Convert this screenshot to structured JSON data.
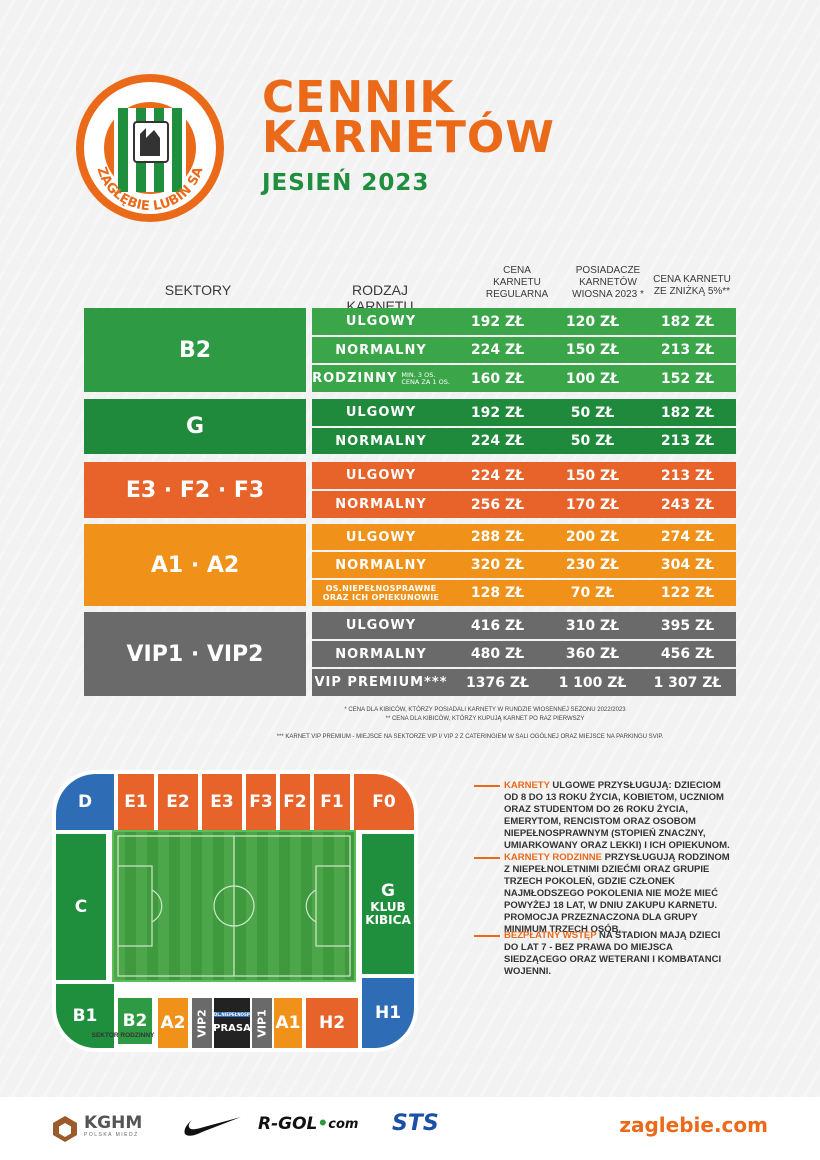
{
  "header": {
    "logo_text": "ZAGŁĘBIE LUBIN SA",
    "title_line1": "CENNIK",
    "title_line2": "KARNETÓW",
    "subtitle": "JESIEŃ 2023"
  },
  "table": {
    "headers": {
      "sector": "SEKTORY",
      "type": "RODZAJ KARNETU",
      "regular": [
        "CENA",
        "KARNETU",
        "REGULARNA"
      ],
      "spring": [
        "POSIADACZE",
        "KARNETÓW",
        "WIOSNA 2023 *"
      ],
      "discount": [
        "CENA KARNETU",
        "ZE ZNIŻKĄ 5%**"
      ]
    },
    "groups": [
      {
        "sector": "B2",
        "color": "#2f9a44",
        "row_color": "#3aa549",
        "rows": [
          {
            "type": "ULGOWY",
            "regular": "192 ZŁ",
            "spring": "120 ZŁ",
            "discount": "182 ZŁ"
          },
          {
            "type": "NORMALNY",
            "regular": "224 ZŁ",
            "spring": "150 ZŁ",
            "discount": "213 ZŁ"
          },
          {
            "type": "RODZINNY",
            "note1": "MIN. 3 OS.",
            "note2": "CENA ZA 1 OS.",
            "regular": "160 ZŁ",
            "spring": "100 ZŁ",
            "discount": "152 ZŁ"
          }
        ]
      },
      {
        "sector": "G",
        "color": "#1f8a3b",
        "row_color": "#1f8a3b",
        "rows": [
          {
            "type": "ULGOWY",
            "regular": "192 ZŁ",
            "spring": "50 ZŁ",
            "discount": "182 ZŁ"
          },
          {
            "type": "NORMALNY",
            "regular": "224 ZŁ",
            "spring": "50 ZŁ",
            "discount": "213 ZŁ"
          }
        ]
      },
      {
        "sector": "E3 · F2 · F3",
        "color": "#e8632a",
        "row_color": "#e8632a",
        "rows": [
          {
            "type": "ULGOWY",
            "regular": "224 ZŁ",
            "spring": "150 ZŁ",
            "discount": "213 ZŁ"
          },
          {
            "type": "NORMALNY",
            "regular": "256 ZŁ",
            "spring": "170 ZŁ",
            "discount": "243 ZŁ"
          }
        ]
      },
      {
        "sector": "A1 · A2",
        "color": "#f0921a",
        "row_color": "#f0921a",
        "rows": [
          {
            "type": "ULGOWY",
            "regular": "288 ZŁ",
            "spring": "200 ZŁ",
            "discount": "274 ZŁ"
          },
          {
            "type": "NORMALNY",
            "regular": "320 ZŁ",
            "spring": "230 ZŁ",
            "discount": "304 ZŁ"
          },
          {
            "type_line1": "OS.NIEPEŁNOSPRAWNE",
            "type_line2": "ORAZ ICH OPIEKUNOWIE",
            "regular": "128 ZŁ",
            "spring": "70 ZŁ",
            "discount": "122 ZŁ"
          }
        ]
      },
      {
        "sector": "VIP1 · VIP2",
        "color": "#6a6a6a",
        "row_color": "#6a6a6a",
        "rows": [
          {
            "type": "ULGOWY",
            "regular": "416 ZŁ",
            "spring": "310 ZŁ",
            "discount": "395 ZŁ"
          },
          {
            "type": "NORMALNY",
            "regular": "480 ZŁ",
            "spring": "360 ZŁ",
            "discount": "456 ZŁ"
          },
          {
            "type": "VIP PREMIUM***",
            "regular": "1376 ZŁ",
            "spring": "1 100 ZŁ",
            "discount": "1 307 ZŁ"
          }
        ]
      }
    ],
    "footnotes": [
      "* CENA DLA KIBICÓW, KTÓRZY POSIADALI KARNETY W RUNDZIE WIOSENNEJ SEZONU 2022/2023",
      "** CENA DLA KIBICÓW, KTÓRZY KUPUJĄ KARNET PO RAZ PIERWSZY",
      "*** KARNET VIP PREMIUM - MIEJSCE NA SEKTORZE VIP I/ VIP 2 Z CATERINGIEM W SALI OGÓLNEJ ORAZ MIEJSCE NA PARKINGU SVIP."
    ]
  },
  "stadium": {
    "top": [
      "D",
      "E1",
      "E2",
      "E3",
      "F3",
      "F2",
      "F1",
      "F0"
    ],
    "left": "C",
    "right_line1": "G",
    "right_line2": "KLUB",
    "right_line3": "KIBICA",
    "bottom": [
      "B1",
      "B2",
      "A2",
      "VIP2",
      "PRASA",
      "VIP1",
      "A1",
      "H2",
      "H1"
    ],
    "press_small": "DL.NIEPEŁNOSPR.",
    "family_label": "SEKTOR RODZINNY"
  },
  "info": [
    {
      "highlight": "KARNETY",
      "text": " ULGOWE PRZYSŁUGUJĄ: DZIECIOM OD 8 DO 13 ROKU ŻYCIA, KOBIETOM, UCZNIOM ORAZ STUDENTOM DO 26 ROKU ŻYCIA, EMERYTOM, RENCISTOM ORAZ OSOBOM NIEPEŁNOSPRAWNYM (STOPIEŃ ZNACZNY, UMIARKOWANY ORAZ LEKKI) I ICH OPIEKUNOM."
    },
    {
      "highlight": "KARNETY RODZINNE",
      "text": " PRZYSŁUGUJĄ RODZINOM Z NIEPEŁNOLETNIMI DZIEĆMI ORAZ GRUPIE TRZECH POKOLEŃ, GDZIE CZŁONEK NAJMŁODSZEGO POKOLENIA NIE MOŻE MIEĆ POWYŻEJ 18 LAT, W DNIU ZAKUPU KARNETU. PROMOCJA PRZEZNACZONA DLA GRUPY MINIMUM TRZECH OSÓB."
    },
    {
      "highlight": "BEZPŁATNY WSTĘP",
      "text": " NA STADION MAJĄ DZIECI DO LAT 7 - BEZ PRAWA DO MIEJSCA SIEDZĄCEGO ORAZ WETERANI I KOMBATANCI WOJENNI."
    }
  ],
  "footer": {
    "kghm": "KGHM",
    "kghm_sub": "POLSKA MIEDŹ",
    "rgol": "R-GOL",
    "rgol_suffix": "com",
    "sts": "STS",
    "website": "zaglebie.com"
  }
}
